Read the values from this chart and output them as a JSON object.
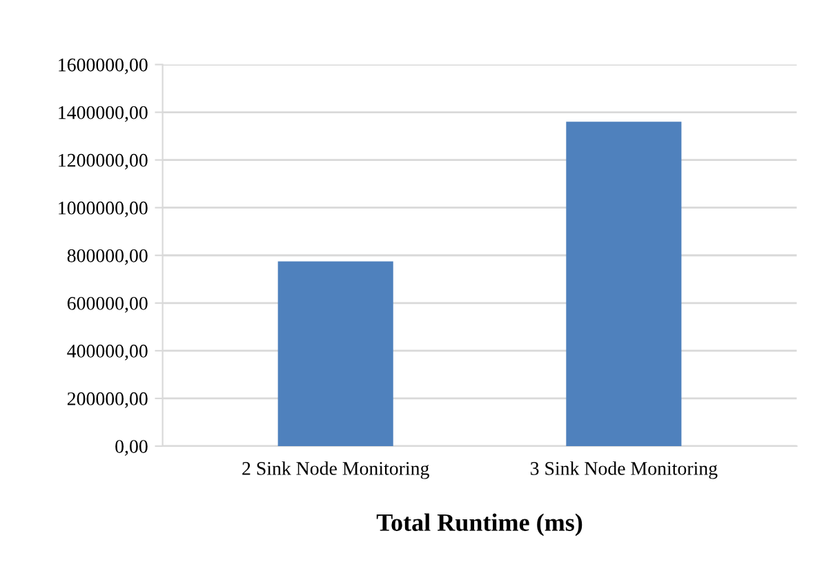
{
  "chart_data": {
    "type": "bar",
    "xlabel": "Total Runtime (ms)",
    "categories": [
      "2 Sink Node Monitoring",
      "3 Sink Node Monitoring"
    ],
    "values": [
      775000,
      1360000
    ],
    "color": "#4f81bd",
    "ylim": [
      0,
      1600000
    ],
    "yticks": [
      {
        "value": 0,
        "label": "0,00"
      },
      {
        "value": 200000,
        "label": "200000,00"
      },
      {
        "value": 400000,
        "label": "400000,00"
      },
      {
        "value": 600000,
        "label": "600000,00"
      },
      {
        "value": 800000,
        "label": "800000,00"
      },
      {
        "value": 1000000,
        "label": "1000000,00"
      },
      {
        "value": 1200000,
        "label": "1200000,00"
      },
      {
        "value": 1400000,
        "label": "1400000,00"
      },
      {
        "value": 1600000,
        "label": "1600000,00"
      }
    ],
    "grid": "y"
  }
}
